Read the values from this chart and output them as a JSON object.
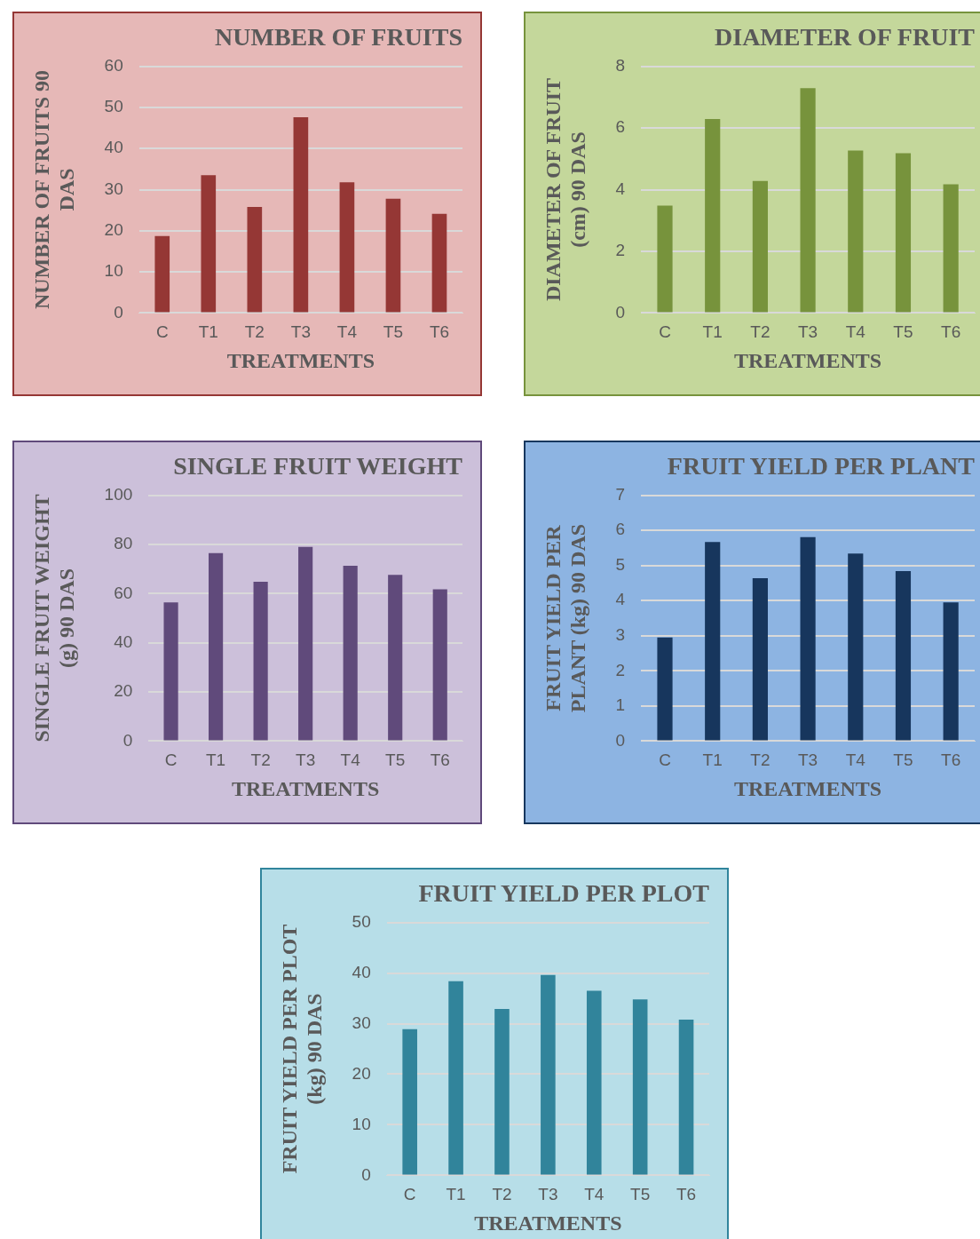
{
  "chart_data": [
    {
      "type": "bar",
      "title": "NUMBER OF FRUITS",
      "xlabel": "TREATMENTS",
      "ylabel": "NUMBER OF FRUITS 90 DAS",
      "categories": [
        "C",
        "T1",
        "T2",
        "T3",
        "T4",
        "T5",
        "T6"
      ],
      "values": [
        18.7,
        33.5,
        25.8,
        47.6,
        31.8,
        27.8,
        24.1
      ],
      "color": "#953735",
      "ylim": [
        0,
        60
      ],
      "yticks": [
        0,
        10,
        20,
        30,
        40,
        50,
        60
      ],
      "grid": "y",
      "legend": false
    },
    {
      "type": "bar",
      "title": "DIAMETER OF FRUIT",
      "xlabel": "TREATMENTS",
      "ylabel": "DIAMETER OF FRUIT (cm) 90 DAS",
      "categories": [
        "C",
        "T1",
        "T2",
        "T3",
        "T4",
        "T5",
        "T6"
      ],
      "values": [
        3.48,
        6.29,
        4.28,
        7.29,
        5.27,
        5.18,
        4.17
      ],
      "color": "#77933c",
      "ylim": [
        0,
        8
      ],
      "yticks": [
        0,
        2,
        4,
        6,
        8
      ],
      "grid": "y",
      "legend": false
    },
    {
      "type": "bar",
      "title": "SINGLE FRUIT WEIGHT",
      "xlabel": "TREATMENTS",
      "ylabel": "SINGLE FRUIT WEIGHT (g) 90 DAS",
      "categories": [
        "C",
        "T1",
        "T2",
        "T3",
        "T4",
        "T5",
        "T6"
      ],
      "values": [
        56.4,
        76.5,
        64.8,
        79,
        71.3,
        67.6,
        61.7
      ],
      "color": "#604a7b",
      "ylim": [
        0,
        100
      ],
      "yticks": [
        0,
        20,
        40,
        60,
        80,
        100
      ],
      "grid": "y",
      "legend": false
    },
    {
      "type": "bar",
      "title": "FRUIT YIELD PER PLANT",
      "xlabel": "TREATMENTS",
      "ylabel": "FRUIT YIELD PER PLANT (kg) 90 DAS",
      "categories": [
        "C",
        "T1",
        "T2",
        "T3",
        "T4",
        "T5",
        "T6"
      ],
      "values": [
        2.95,
        5.67,
        4.64,
        5.81,
        5.34,
        4.84,
        3.95
      ],
      "color": "#17365d",
      "ylim": [
        0,
        7
      ],
      "yticks": [
        0,
        1,
        2,
        3,
        4,
        5,
        6,
        7
      ],
      "grid": "y",
      "legend": false
    },
    {
      "type": "bar",
      "title": "FRUIT YIELD PER PLOT",
      "xlabel": "TREATMENTS",
      "ylabel": "FRUIT YIELD PER PLOT (kg) 90 DAS",
      "categories": [
        "C",
        "T1",
        "T2",
        "T3",
        "T4",
        "T5",
        "T6"
      ],
      "values": [
        28.9,
        38.4,
        32.9,
        39.6,
        36.5,
        34.8,
        30.8
      ],
      "color": "#31849b",
      "ylim": [
        0,
        50
      ],
      "yticks": [
        0,
        10,
        20,
        30,
        40,
        50
      ],
      "grid": "y",
      "legend": false
    }
  ]
}
